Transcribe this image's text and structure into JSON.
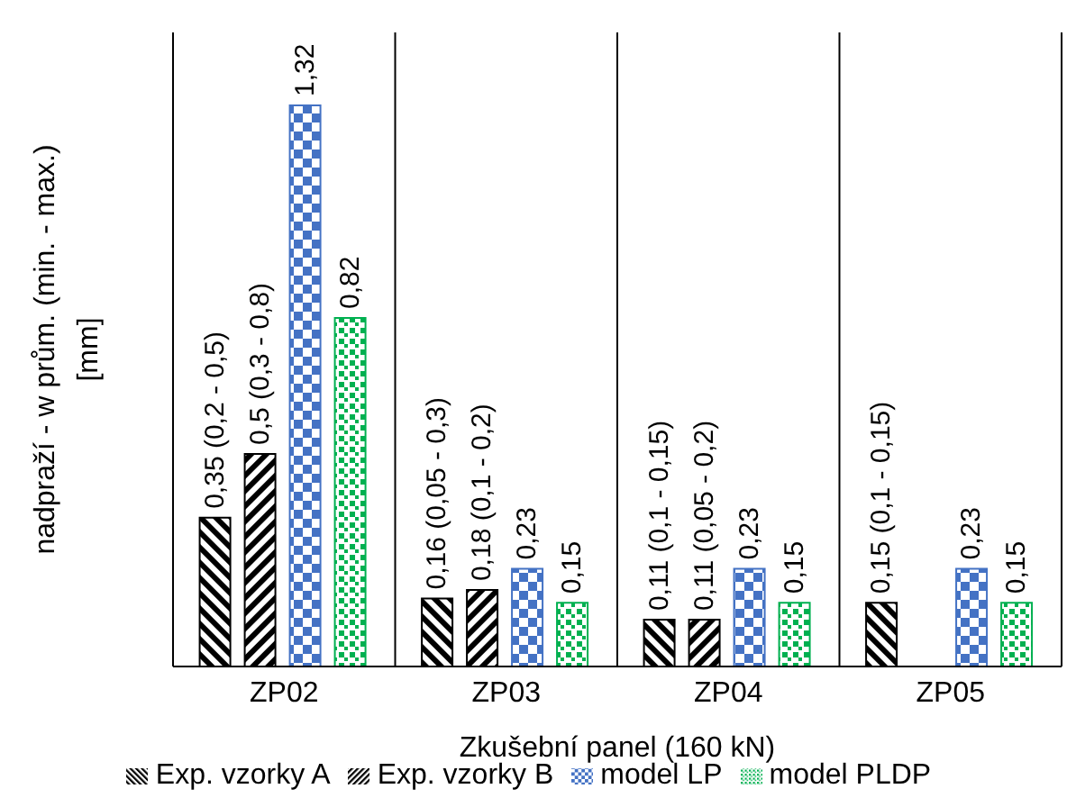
{
  "chart_data": {
    "type": "bar",
    "xlabel": "Zkušební panel (160 kN)",
    "ylabel": "nadpraží - w prům. (min. - max.) [mm]",
    "categories": [
      "ZP02",
      "ZP03",
      "ZP04",
      "ZP05"
    ],
    "grid": "x",
    "legend": "bottom",
    "tick_labels": "x",
    "series": [
      {
        "name": "Exp. vzorky A",
        "color": "#000000",
        "values": [
          0.35,
          0.16,
          0.11,
          0.15
        ],
        "value_labels": [
          "0,35 (0,2 - 0,5)",
          "0,16 (0,05 - 0,3)",
          "0,11 (0,1 - 0,15)",
          "0,15 (0,1 - 0,15)"
        ]
      },
      {
        "name": "Exp. vzorky B",
        "color": "#000000",
        "values": [
          0.5,
          0.18,
          0.11,
          null
        ],
        "value_labels": [
          "0,5 (0,3 - 0,8)",
          "0,18 (0,1 - 0,2)",
          "0,11 (0,05 - 0,2)",
          null
        ]
      },
      {
        "name": "model LP",
        "color": "#4472c4",
        "values": [
          1.32,
          0.23,
          0.23,
          0.23
        ],
        "value_labels": [
          "1,32",
          "0,23",
          "0,23",
          "0,23"
        ]
      },
      {
        "name": "model PLDP",
        "color": "#00b050",
        "values": [
          0.82,
          0.15,
          0.15,
          0.15
        ],
        "value_labels": [
          "0,82",
          "0,15",
          "0,15",
          "0,15"
        ]
      }
    ]
  }
}
